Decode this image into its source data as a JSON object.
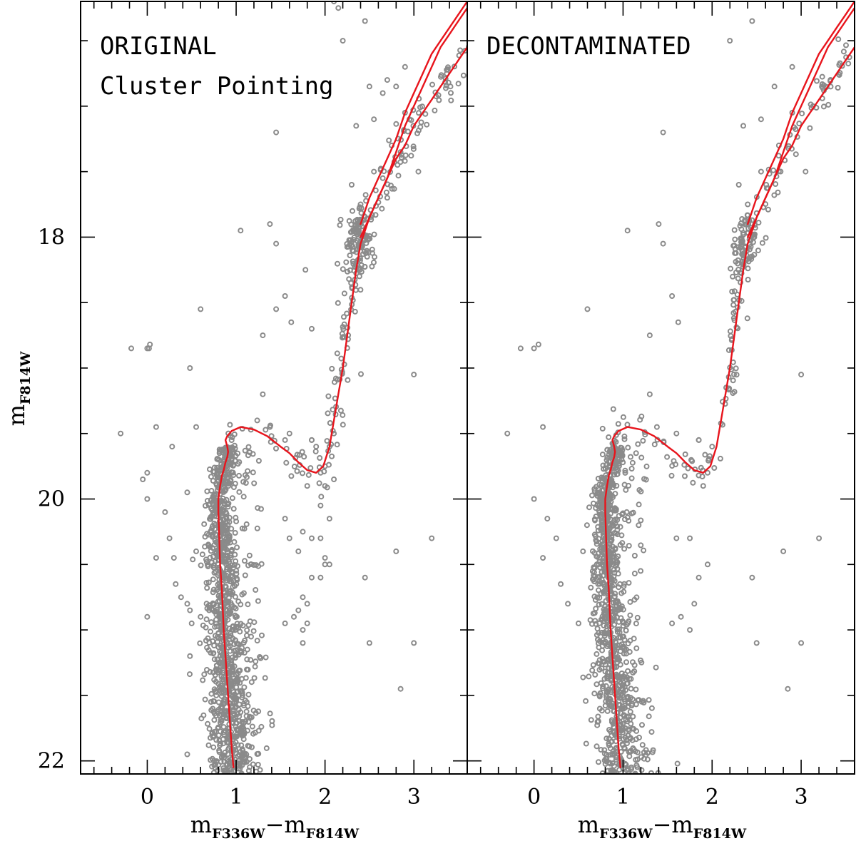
{
  "colors": {
    "points": "#8a8a8a",
    "isochrone": "#e8141c",
    "axes": "#000000"
  },
  "chart_data": [
    {
      "type": "scatter",
      "panel_title": [
        "ORIGINAL",
        "Cluster Pointing"
      ],
      "xlabel": {
        "main": "m",
        "sub1": "F336W",
        "dash": "−",
        "main2": "m",
        "sub2": "F814W"
      },
      "ylabel": {
        "main": "m",
        "sub": "F814W"
      },
      "xlim": [
        -0.75,
        3.6
      ],
      "ylim": [
        22.1,
        16.2
      ],
      "x_ticks": [
        0,
        1,
        2,
        3
      ],
      "x_tick_labels": [
        "0",
        "1",
        "2",
        "3"
      ],
      "y_ticks": [
        18,
        20,
        22
      ],
      "y_tick_labels": [
        "18",
        "20",
        "22"
      ],
      "main_sequence_points": 1100,
      "field_points": [
        [
          -0.3,
          19.5
        ],
        [
          -0.18,
          18.85
        ],
        [
          -0.05,
          19.85
        ],
        [
          0.0,
          18.85
        ],
        [
          0.03,
          18.82
        ],
        [
          0.1,
          19.45
        ],
        [
          0.1,
          20.45
        ],
        [
          0.2,
          20.1
        ],
        [
          0.25,
          20.3
        ],
        [
          0.28,
          19.6
        ],
        [
          0.3,
          20.45
        ],
        [
          0.32,
          20.65
        ],
        [
          0.38,
          20.75
        ],
        [
          0.45,
          19.95
        ],
        [
          0.45,
          20.8
        ],
        [
          0.48,
          20.85
        ],
        [
          0.5,
          20.95
        ],
        [
          0.55,
          20.4
        ],
        [
          0.55,
          19.45
        ],
        [
          0.6,
          20.9
        ],
        [
          0.48,
          21.2
        ],
        [
          0.45,
          21.95
        ],
        [
          0.48,
          19.0
        ],
        [
          0.0,
          19.8
        ],
        [
          0.0,
          20.0
        ],
        [
          0.0,
          20.9
        ],
        [
          0.02,
          18.85
        ],
        [
          1.05,
          17.95
        ],
        [
          1.38,
          17.9
        ],
        [
          1.45,
          17.2
        ],
        [
          0.6,
          18.55
        ],
        [
          1.45,
          18.05
        ],
        [
          1.55,
          18.45
        ],
        [
          1.62,
          18.65
        ],
        [
          1.78,
          18.25
        ],
        [
          1.3,
          18.75
        ],
        [
          1.45,
          18.55
        ],
        [
          1.3,
          19.2
        ],
        [
          1.85,
          18.7
        ],
        [
          1.38,
          19.45
        ],
        [
          1.55,
          19.55
        ],
        [
          1.6,
          19.5
        ],
        [
          1.85,
          19.55
        ],
        [
          2.2,
          16.5
        ],
        [
          2.15,
          16.25
        ],
        [
          2.1,
          16.2
        ],
        [
          2.45,
          16.35
        ],
        [
          2.5,
          16.85
        ],
        [
          2.55,
          17.1
        ],
        [
          2.7,
          16.8
        ],
        [
          2.8,
          16.85
        ],
        [
          2.9,
          16.7
        ],
        [
          2.65,
          16.9
        ],
        [
          2.35,
          17.15
        ],
        [
          2.3,
          17.6
        ],
        [
          2.55,
          17.5
        ],
        [
          2.65,
          17.55
        ],
        [
          2.75,
          17.3
        ],
        [
          2.9,
          17.05
        ],
        [
          2.95,
          17.1
        ],
        [
          2.85,
          17.35
        ],
        [
          2.4,
          17.75
        ],
        [
          2.7,
          17.7
        ],
        [
          3.05,
          17.5
        ],
        [
          2.8,
          20.4
        ],
        [
          3.2,
          20.3
        ],
        [
          3.0,
          21.1
        ],
        [
          2.45,
          20.6
        ],
        [
          2.5,
          21.1
        ],
        [
          2.85,
          21.45
        ],
        [
          3.0,
          19.05
        ],
        [
          1.6,
          20.3
        ],
        [
          1.75,
          20.25
        ],
        [
          1.85,
          20.3
        ],
        [
          1.95,
          20.3
        ],
        [
          1.7,
          20.4
        ],
        [
          1.85,
          20.6
        ],
        [
          2.0,
          20.45
        ],
        [
          2.05,
          20.5
        ],
        [
          1.8,
          20.8
        ],
        [
          1.95,
          20.6
        ],
        [
          1.7,
          20.85
        ],
        [
          1.65,
          20.9
        ],
        [
          1.55,
          20.95
        ],
        [
          1.75,
          21.0
        ],
        [
          1.8,
          20.95
        ],
        [
          1.75,
          20.75
        ],
        [
          1.75,
          21.1
        ],
        [
          2.0,
          20.5
        ],
        [
          2.05,
          20.15
        ],
        [
          1.55,
          20.15
        ],
        [
          1.95,
          20.05
        ],
        [
          1.85,
          19.55
        ],
        [
          1.9,
          19.6
        ],
        [
          1.95,
          19.8
        ],
        [
          2.0,
          19.75
        ],
        [
          2.05,
          19.6
        ],
        [
          2.1,
          19.5
        ],
        [
          1.8,
          19.9
        ],
        [
          2.0,
          19.9
        ],
        [
          2.1,
          19.85
        ]
      ],
      "clump_center": [
        2.38,
        18.05
      ],
      "isochrones": [
        {
          "x": [
            0.97,
            0.95,
            0.93,
            0.91,
            0.89,
            0.86,
            0.84,
            0.82,
            0.81,
            0.8,
            0.8,
            0.81,
            0.82,
            0.84,
            0.86,
            0.88,
            0.9,
            0.91,
            0.9,
            0.88,
            0.9,
            0.95,
            1.05,
            1.2,
            1.35,
            1.5,
            1.6,
            1.7,
            1.8,
            1.9,
            1.98,
            2.05,
            2.1,
            2.15,
            2.2,
            2.25,
            2.3,
            2.35,
            2.4,
            2.5,
            2.6,
            2.7,
            2.8,
            2.9,
            3.0,
            3.1,
            3.2,
            3.3,
            3.4,
            3.5,
            3.6
          ],
          "y": [
            22.05,
            21.9,
            21.7,
            21.5,
            21.3,
            21.0,
            20.7,
            20.5,
            20.3,
            20.1,
            20.0,
            19.95,
            19.9,
            19.82,
            19.78,
            19.72,
            19.68,
            19.64,
            19.6,
            19.55,
            19.52,
            19.48,
            19.45,
            19.47,
            19.52,
            19.6,
            19.65,
            19.72,
            19.78,
            19.8,
            19.75,
            19.6,
            19.4,
            19.2,
            19.0,
            18.75,
            18.5,
            18.25,
            18.05,
            17.85,
            17.7,
            17.55,
            17.4,
            17.3,
            17.15,
            17.05,
            16.95,
            16.85,
            16.75,
            16.65,
            16.55
          ]
        },
        {
          "x": [
            2.4,
            2.5,
            2.6,
            2.7,
            2.8,
            2.9,
            3.0,
            3.1,
            3.2,
            3.3,
            3.4,
            3.5,
            3.6
          ],
          "y": [
            17.9,
            17.7,
            17.55,
            17.4,
            17.25,
            17.05,
            16.9,
            16.75,
            16.6,
            16.5,
            16.4,
            16.3,
            16.2
          ]
        },
        {
          "x": [
            2.4,
            2.5,
            2.6,
            2.7,
            2.8,
            2.9,
            3.0,
            3.1,
            3.2,
            3.3,
            3.4,
            3.5,
            3.6
          ],
          "y": [
            18.0,
            17.85,
            17.7,
            17.55,
            17.35,
            17.15,
            17.0,
            16.85,
            16.7,
            16.55,
            16.45,
            16.35,
            16.25
          ]
        }
      ]
    },
    {
      "type": "scatter",
      "panel_title": [
        "DECONTAMINATED"
      ],
      "xlabel": {
        "main": "m",
        "sub1": "F336W",
        "dash": "−",
        "main2": "m",
        "sub2": "F814W"
      },
      "xlim": [
        -0.75,
        3.6
      ],
      "ylim": [
        22.1,
        16.2
      ],
      "x_ticks": [
        0,
        1,
        2,
        3
      ],
      "x_tick_labels": [
        "0",
        "1",
        "2",
        "3"
      ],
      "main_sequence_points": 1000,
      "field_points": [
        [
          -0.3,
          19.5
        ],
        [
          -0.15,
          18.85
        ],
        [
          0.0,
          18.85
        ],
        [
          0.05,
          18.82
        ],
        [
          0.1,
          19.45
        ],
        [
          0.1,
          20.45
        ],
        [
          0.25,
          20.3
        ],
        [
          0.3,
          20.65
        ],
        [
          0.38,
          20.8
        ],
        [
          0.5,
          20.95
        ],
        [
          0.55,
          20.4
        ],
        [
          0.0,
          20.0
        ],
        [
          0.15,
          20.15
        ],
        [
          1.05,
          17.95
        ],
        [
          1.4,
          17.9
        ],
        [
          1.45,
          17.2
        ],
        [
          0.6,
          18.55
        ],
        [
          1.45,
          18.05
        ],
        [
          1.55,
          18.45
        ],
        [
          1.62,
          18.65
        ],
        [
          1.3,
          18.75
        ],
        [
          1.3,
          19.2
        ],
        [
          1.38,
          19.45
        ],
        [
          1.6,
          19.5
        ],
        [
          1.85,
          19.55
        ],
        [
          2.2,
          16.5
        ],
        [
          2.45,
          16.35
        ],
        [
          2.55,
          17.1
        ],
        [
          2.7,
          16.85
        ],
        [
          2.9,
          16.7
        ],
        [
          2.35,
          17.15
        ],
        [
          2.3,
          17.6
        ],
        [
          2.55,
          17.5
        ],
        [
          2.75,
          17.3
        ],
        [
          2.9,
          17.05
        ],
        [
          2.4,
          17.75
        ],
        [
          3.05,
          17.5
        ],
        [
          2.8,
          20.4
        ],
        [
          3.2,
          20.3
        ],
        [
          3.0,
          21.1
        ],
        [
          2.45,
          20.6
        ],
        [
          2.5,
          21.1
        ],
        [
          2.85,
          21.45
        ],
        [
          3.0,
          19.05
        ],
        [
          1.6,
          20.3
        ],
        [
          1.75,
          20.3
        ],
        [
          1.85,
          20.6
        ],
        [
          1.8,
          20.8
        ],
        [
          1.65,
          20.9
        ],
        [
          1.75,
          21.0
        ],
        [
          1.55,
          20.95
        ],
        [
          1.95,
          20.5
        ],
        [
          1.85,
          19.55
        ],
        [
          1.95,
          19.8
        ],
        [
          2.0,
          19.6
        ],
        [
          1.9,
          19.9
        ]
      ],
      "clump_center": [
        2.38,
        18.05
      ],
      "isochrones": [
        {
          "x": [
            0.97,
            0.95,
            0.93,
            0.91,
            0.89,
            0.86,
            0.84,
            0.82,
            0.81,
            0.8,
            0.8,
            0.81,
            0.82,
            0.84,
            0.86,
            0.88,
            0.9,
            0.91,
            0.9,
            0.88,
            0.9,
            0.95,
            1.05,
            1.2,
            1.35,
            1.5,
            1.6,
            1.7,
            1.8,
            1.9,
            1.98,
            2.05,
            2.1,
            2.15,
            2.2,
            2.25,
            2.3,
            2.35,
            2.4,
            2.5,
            2.6,
            2.7,
            2.8,
            2.9,
            3.0,
            3.1,
            3.2,
            3.3,
            3.4,
            3.5,
            3.6
          ],
          "y": [
            22.05,
            21.9,
            21.7,
            21.5,
            21.3,
            21.0,
            20.7,
            20.5,
            20.3,
            20.1,
            20.0,
            19.95,
            19.9,
            19.82,
            19.78,
            19.72,
            19.68,
            19.64,
            19.6,
            19.55,
            19.52,
            19.48,
            19.45,
            19.47,
            19.52,
            19.6,
            19.65,
            19.72,
            19.78,
            19.8,
            19.75,
            19.6,
            19.4,
            19.2,
            19.0,
            18.75,
            18.5,
            18.25,
            18.05,
            17.85,
            17.7,
            17.55,
            17.4,
            17.3,
            17.15,
            17.05,
            16.95,
            16.85,
            16.75,
            16.65,
            16.55
          ]
        },
        {
          "x": [
            2.4,
            2.5,
            2.6,
            2.7,
            2.8,
            2.9,
            3.0,
            3.1,
            3.2,
            3.3,
            3.4,
            3.5,
            3.6
          ],
          "y": [
            17.9,
            17.7,
            17.55,
            17.4,
            17.25,
            17.05,
            16.9,
            16.75,
            16.6,
            16.5,
            16.4,
            16.3,
            16.2
          ]
        },
        {
          "x": [
            2.4,
            2.5,
            2.6,
            2.7,
            2.8,
            2.9,
            3.0,
            3.1,
            3.2,
            3.3,
            3.4,
            3.5,
            3.6
          ],
          "y": [
            18.0,
            17.85,
            17.7,
            17.55,
            17.35,
            17.15,
            17.0,
            16.85,
            16.7,
            16.55,
            16.45,
            16.35,
            16.25
          ]
        }
      ]
    }
  ]
}
